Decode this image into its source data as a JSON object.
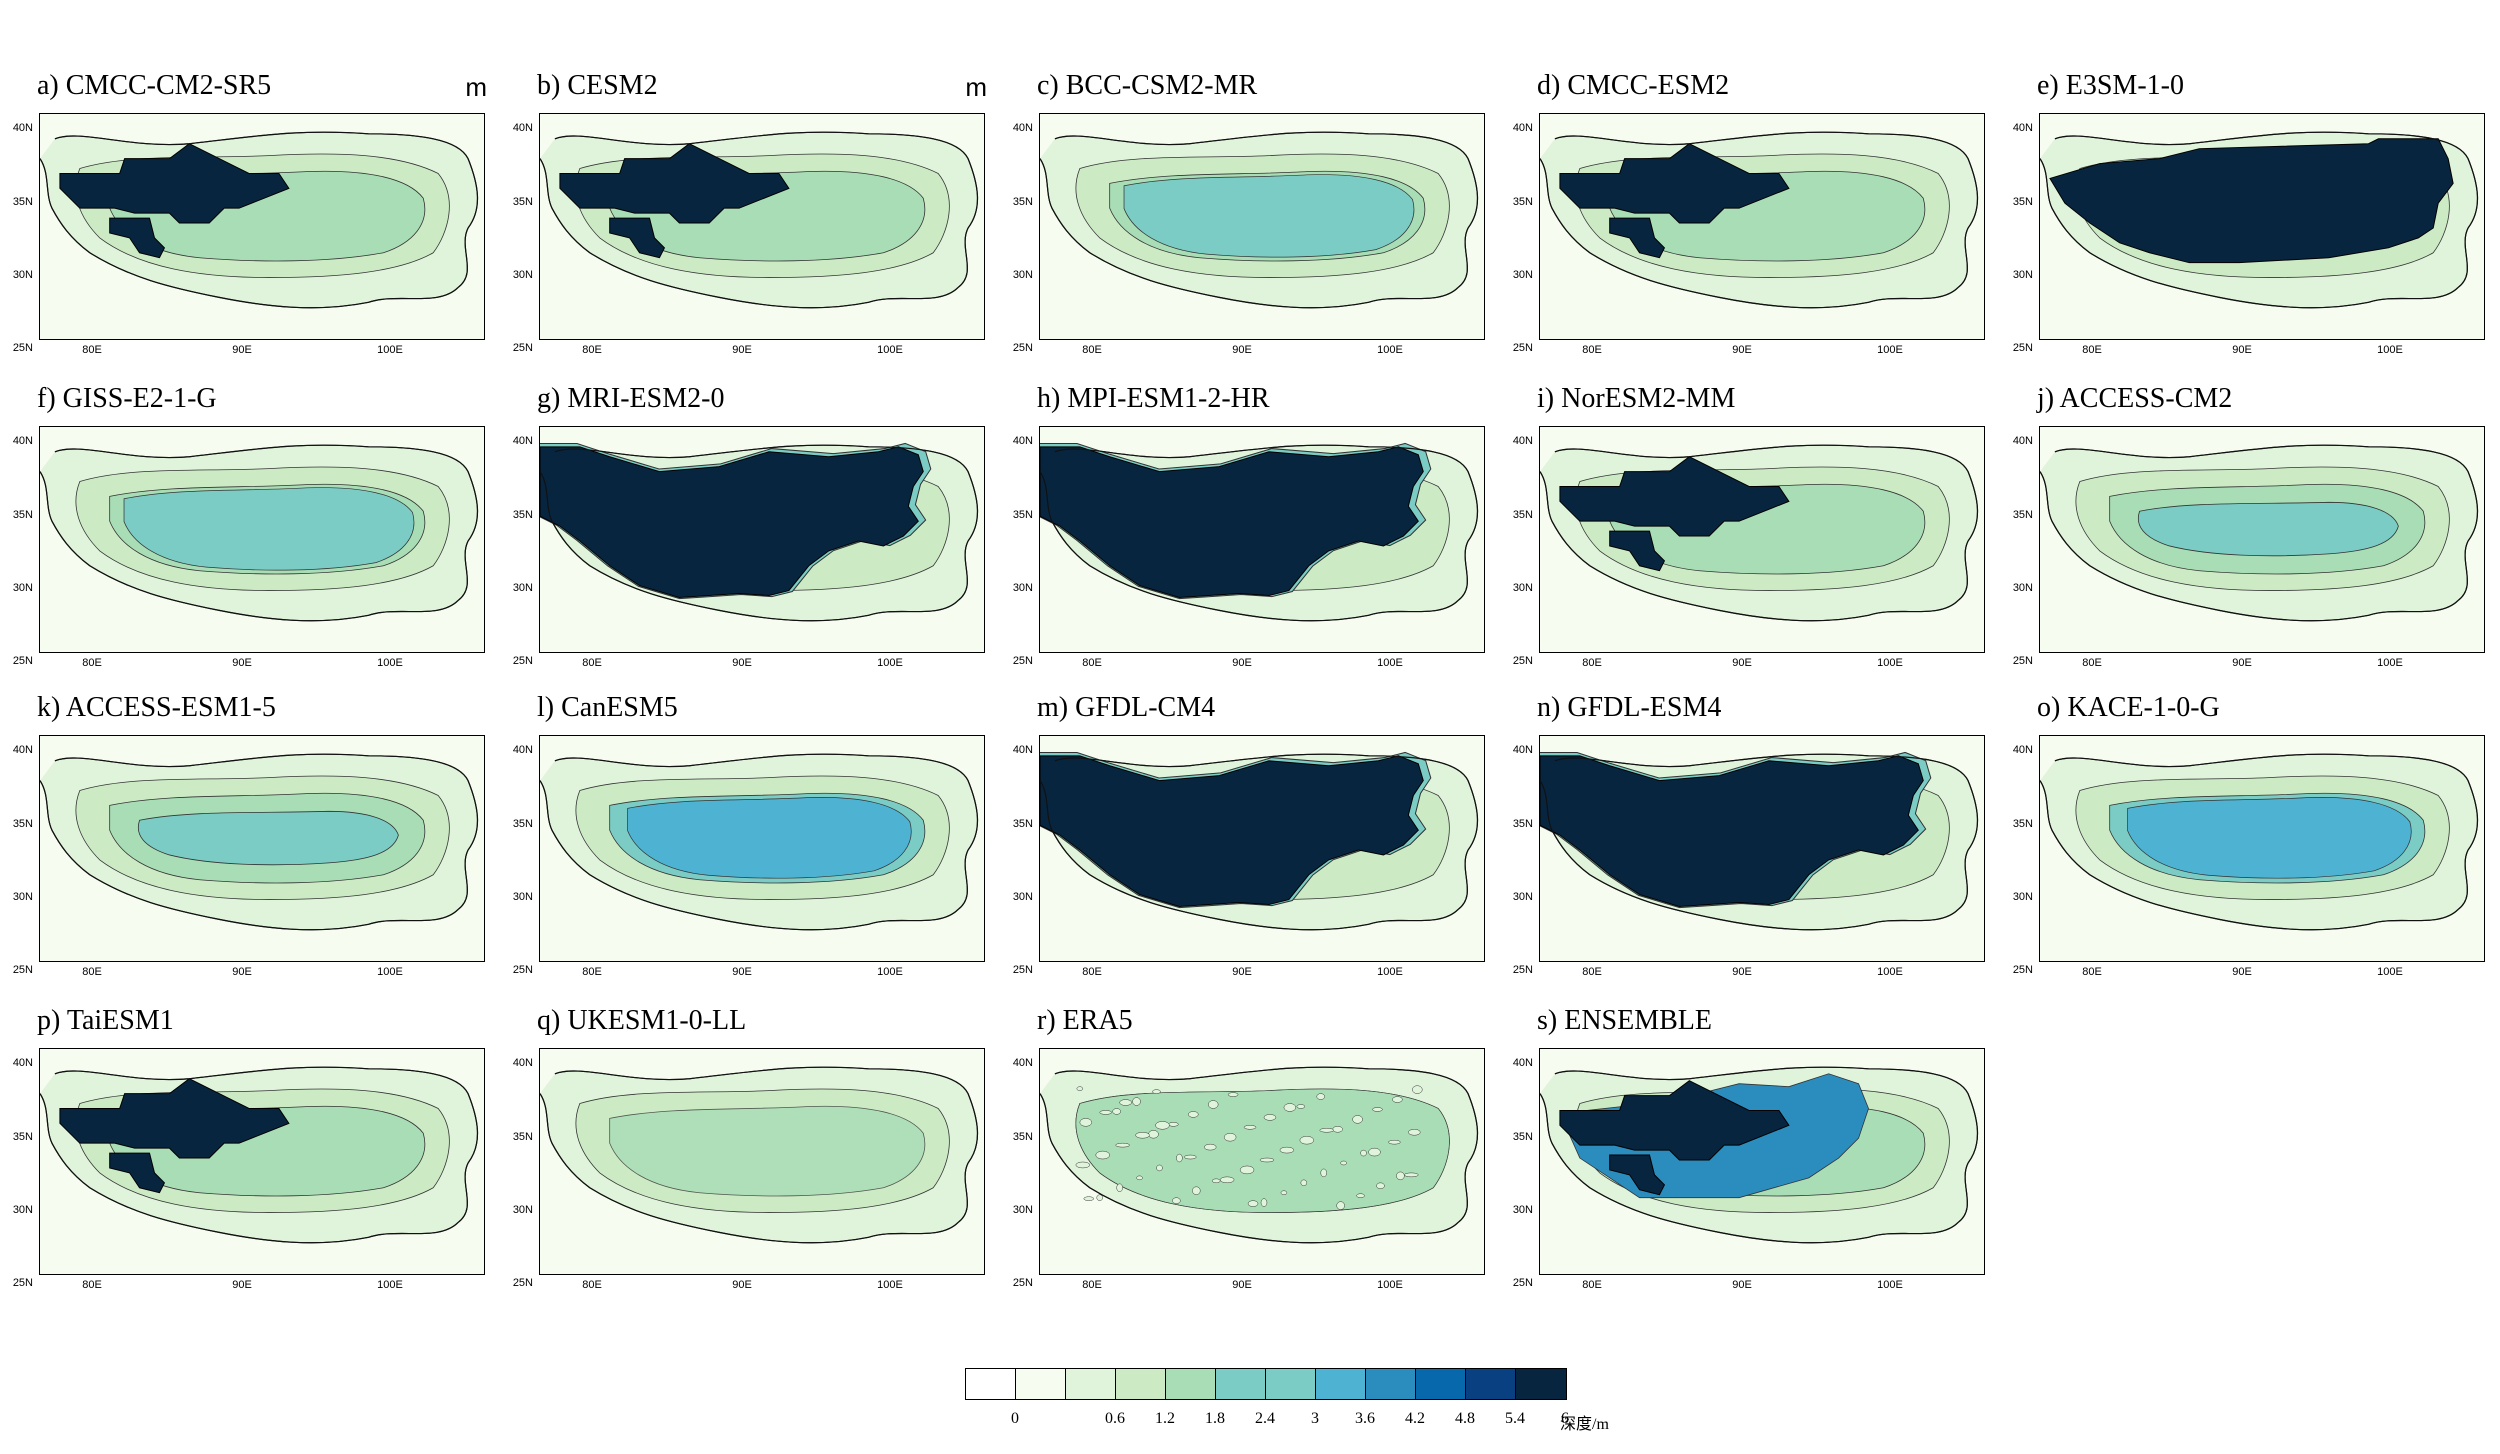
{
  "panels": [
    {
      "id": "a",
      "title": "a) CMCC-CM2-SR5",
      "unit": "m",
      "style": "block"
    },
    {
      "id": "b",
      "title": "b) CESM2",
      "unit": "m",
      "style": "block"
    },
    {
      "id": "c",
      "title": "c) BCC-CSM2-MR",
      "unit": "",
      "style": "teal"
    },
    {
      "id": "d",
      "title": "d) CMCC-ESM2",
      "unit": "",
      "style": "block"
    },
    {
      "id": "e",
      "title": "e) E3SM-1-0",
      "unit": "",
      "style": "bigblock"
    },
    {
      "id": "f",
      "title": "f) GISS-E2-1-G",
      "unit": "",
      "style": "teal"
    },
    {
      "id": "g",
      "title": "g) MRI-ESM2-0",
      "unit": "",
      "style": "fullblock"
    },
    {
      "id": "h",
      "title": "h) MPI-ESM1-2-HR",
      "unit": "",
      "style": "fullblock"
    },
    {
      "id": "i",
      "title": "i) NorESM2-MM",
      "unit": "",
      "style": "block"
    },
    {
      "id": "j",
      "title": "j) ACCESS-CM2",
      "unit": "",
      "style": "light"
    },
    {
      "id": "k",
      "title": "k) ACCESS-ESM1-5",
      "unit": "",
      "style": "light"
    },
    {
      "id": "l",
      "title": "l) CanESM5",
      "unit": "",
      "style": "blue"
    },
    {
      "id": "m",
      "title": "m) GFDL-CM4",
      "unit": "",
      "style": "fullblock"
    },
    {
      "id": "n",
      "title": "n) GFDL-ESM4",
      "unit": "",
      "style": "fullblock"
    },
    {
      "id": "o",
      "title": "o) KACE-1-0-G",
      "unit": "",
      "style": "blue"
    },
    {
      "id": "p",
      "title": "p) TaiESM1",
      "unit": "",
      "style": "block"
    },
    {
      "id": "q",
      "title": "q) UKESM1-0-LL",
      "unit": "",
      "style": "lightest"
    },
    {
      "id": "r",
      "title": "r) ERA5",
      "unit": "",
      "style": "era"
    },
    {
      "id": "s",
      "title": "s) ENSEMBLE",
      "unit": "",
      "style": "ensemble"
    }
  ],
  "lat_ticks": [
    "40N",
    "35N",
    "30N",
    "25N"
  ],
  "lon_ticks": [
    "80E",
    "90E",
    "100E"
  ],
  "colorbar": {
    "colors": [
      "#ffffff",
      "#f7fcf0",
      "#e0f3db",
      "#ccebc5",
      "#a8ddb5",
      "#7bccc4",
      "#7bccc4",
      "#4eb3d3",
      "#2b8cbe",
      "#0868ac",
      "#084081",
      "#08253f"
    ],
    "labels": [
      "0",
      "",
      "0.6",
      "1.2",
      "1.8",
      "2.4",
      "3",
      "3.6",
      "4.2",
      "4.8",
      "5.4",
      "6"
    ],
    "unit": "深度/m"
  },
  "colors": {
    "deep": "#08253f",
    "teal": "#7bccc4",
    "blue": "#4eb3d3",
    "green1": "#e0f3db",
    "green2": "#ccebc5",
    "green3": "#a8ddb5",
    "bg": "#f7fcf0"
  }
}
